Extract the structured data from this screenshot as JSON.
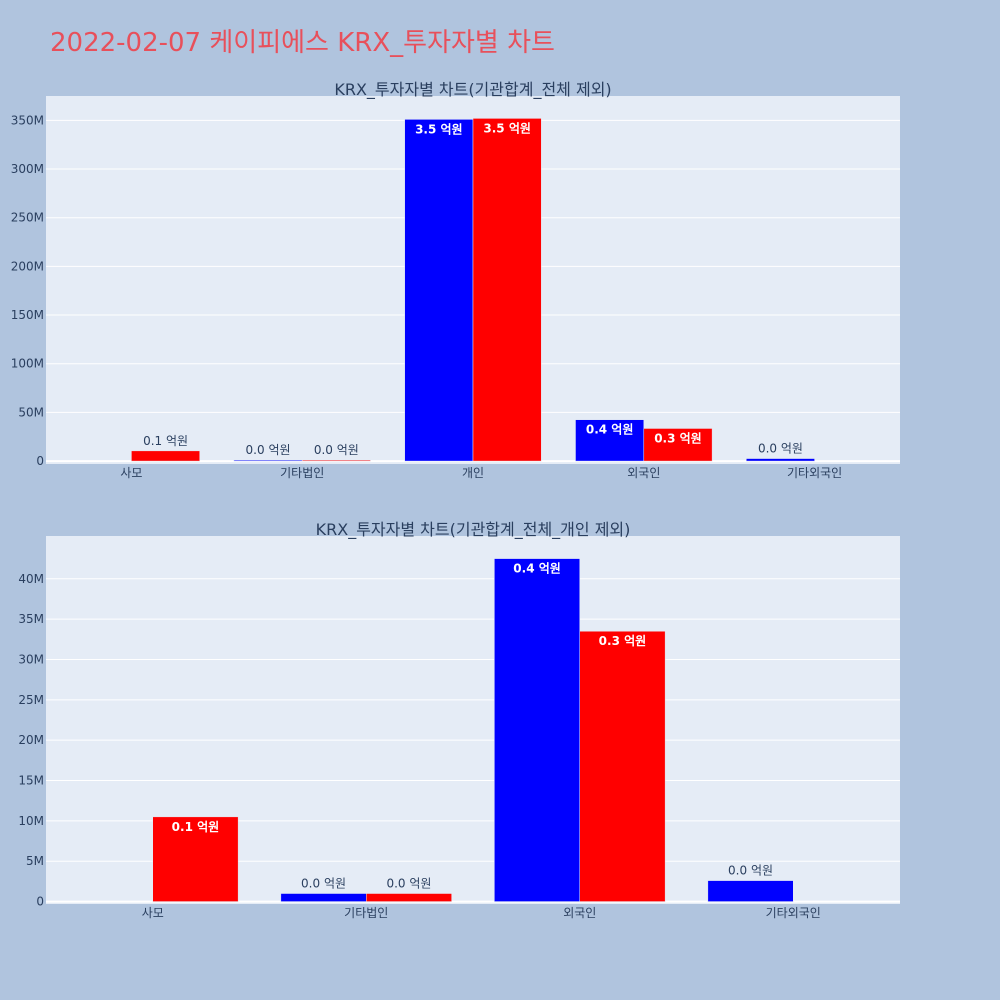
{
  "page": {
    "title": "2022-02-07 케이피에스 KRX_투자자별 차트"
  },
  "chart_data": [
    {
      "type": "bar",
      "title": "KRX_투자자별 차트(기관합계_전체 제외)",
      "categories": [
        "사모",
        "기타법인",
        "개인",
        "외국인",
        "기타외국인"
      ],
      "yticks": [
        "0",
        "50M",
        "100M",
        "150M",
        "200M",
        "250M",
        "300M",
        "350M"
      ],
      "ytick_values": [
        0,
        50000000,
        100000000,
        150000000,
        200000000,
        250000000,
        300000000,
        350000000
      ],
      "ylim": [
        -3000000,
        375000000
      ],
      "legend": "none",
      "grid": true,
      "series": [
        {
          "color": "#0000ff",
          "values": [
            0,
            1000000,
            351000000,
            42500000,
            2600000
          ],
          "labels": [
            "",
            "0.0 억원",
            "3.5 억원",
            "0.4 억원",
            "0.0 억원"
          ]
        },
        {
          "color": "#ff0000",
          "values": [
            10500000,
            1000000,
            352000000,
            33500000,
            0
          ],
          "labels": [
            "0.1 억원",
            "0.0 억원",
            "3.5 억원",
            "0.3 억원",
            ""
          ]
        }
      ]
    },
    {
      "type": "bar",
      "title": "KRX_투자자별 차트(기관합계_전체_개인 제외)",
      "categories": [
        "사모",
        "기타법인",
        "외국인",
        "기타외국인"
      ],
      "yticks": [
        "0",
        "5M",
        "10M",
        "15M",
        "20M",
        "25M",
        "30M",
        "35M",
        "40M"
      ],
      "ytick_values": [
        0,
        5000000,
        10000000,
        15000000,
        20000000,
        25000000,
        30000000,
        35000000,
        40000000
      ],
      "ylim": [
        -300000,
        45300000
      ],
      "legend": "none",
      "grid": true,
      "series": [
        {
          "color": "#0000ff",
          "values": [
            0,
            1000000,
            42500000,
            2600000
          ],
          "labels": [
            "",
            "0.0 억원",
            "0.4 억원",
            "0.0 억원"
          ]
        },
        {
          "color": "#ff0000",
          "values": [
            10500000,
            1000000,
            33500000,
            0
          ],
          "labels": [
            "0.1 억원",
            "0.0 억원",
            "0.3 억원",
            ""
          ]
        }
      ]
    }
  ]
}
